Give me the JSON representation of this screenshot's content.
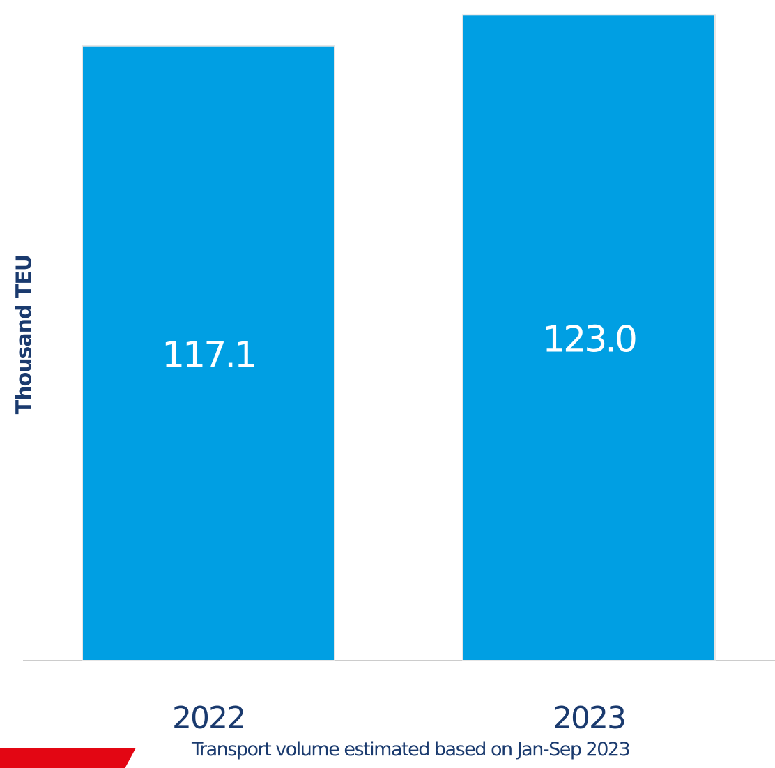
{
  "chart_data": {
    "type": "bar",
    "categories": [
      "2022",
      "2023"
    ],
    "values": [
      117.1,
      123.0
    ],
    "value_labels": [
      "117.1",
      "123.0"
    ],
    "ylabel": "Thousand TEU",
    "xlabel": "",
    "ylim": [
      0,
      124.5
    ],
    "grid": false,
    "legend": "none",
    "note": "Transport volume estimated based on Jan-Sep 2023"
  },
  "colors": {
    "bar": "#009fe3",
    "text_dark": "#1a3a6e",
    "text_light": "#ffffff",
    "axis": "#cccccc",
    "accent": "#e30613"
  }
}
